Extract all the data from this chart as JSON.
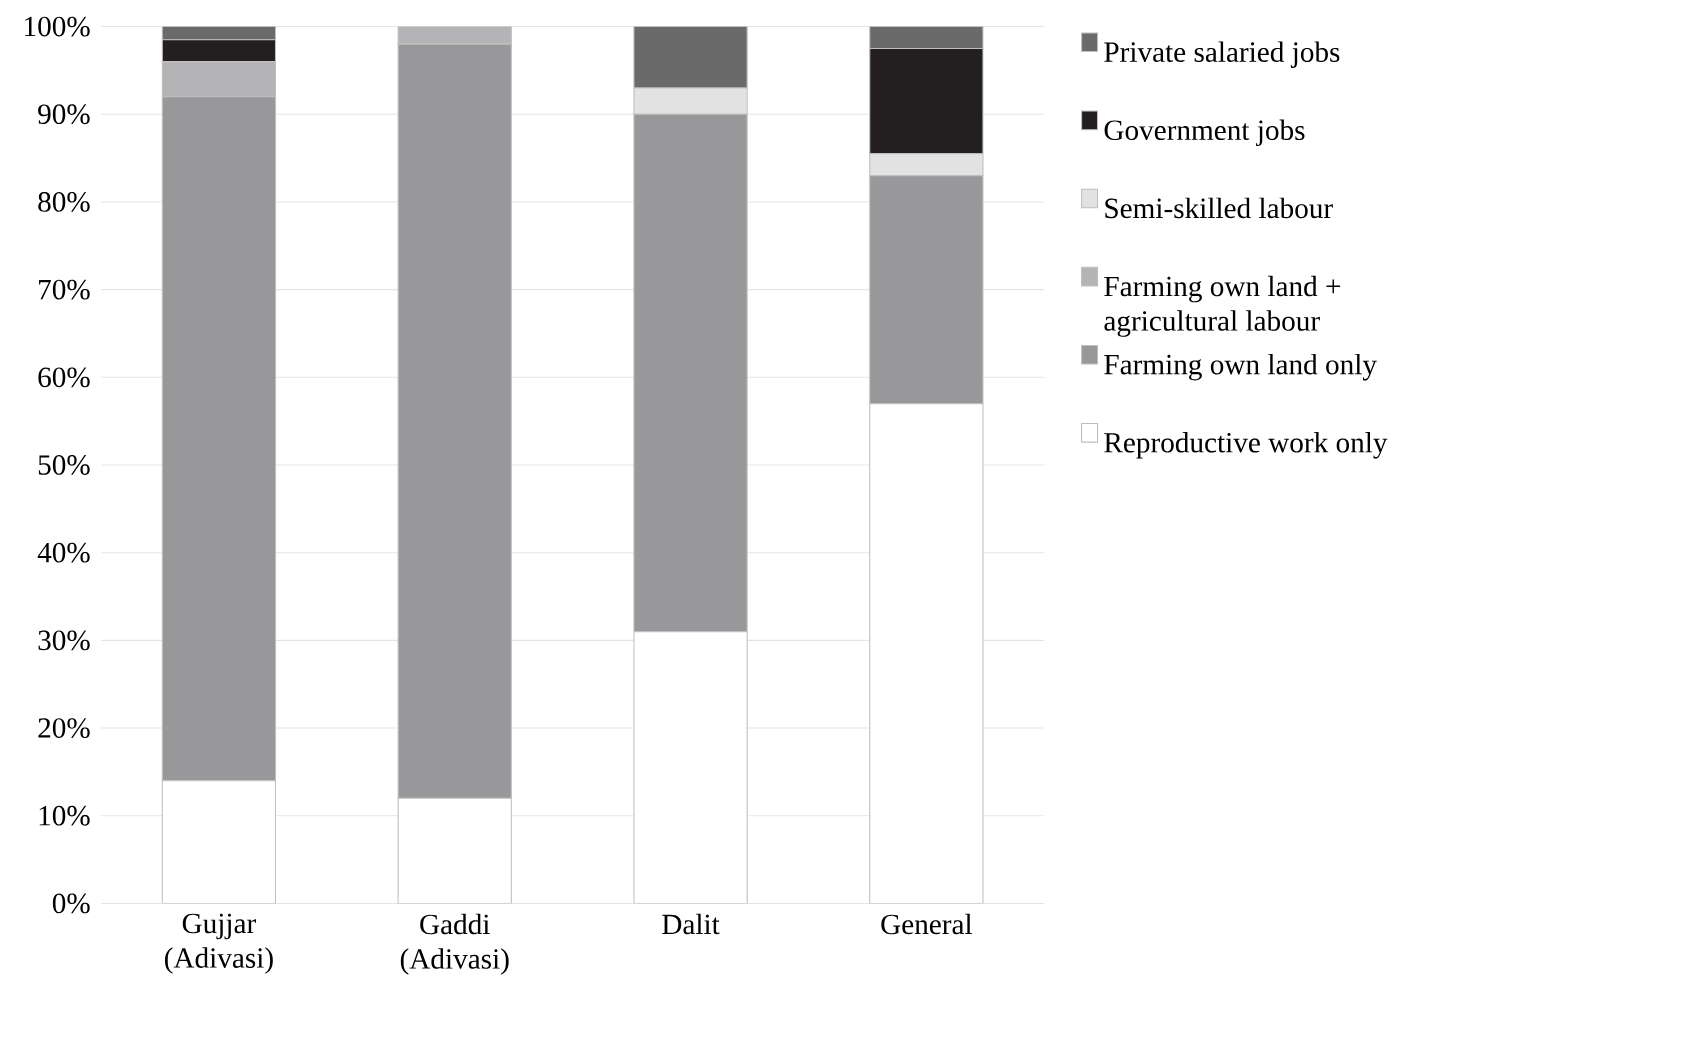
{
  "chart_data": {
    "type": "bar",
    "stacked": true,
    "categories": [
      "Gujjar (Adivasi)",
      "Gaddi (Adivasi)",
      "Dalit",
      "General"
    ],
    "series": [
      {
        "name": "Reproductive work only",
        "color": "#ffffff",
        "values": [
          14,
          12,
          31,
          57
        ]
      },
      {
        "name": "Farming own land only",
        "color": "#98989b",
        "values": [
          78,
          86,
          59,
          26
        ]
      },
      {
        "name": "Farming own land + agricultural labour",
        "color": "#b4b4b7",
        "values": [
          4,
          2,
          0,
          0
        ]
      },
      {
        "name": "Semi-skilled labour",
        "color": "#e2e2e2",
        "values": [
          0,
          0,
          3,
          2.5
        ]
      },
      {
        "name": "Government jobs",
        "color": "#231f20",
        "values": [
          2.5,
          0,
          0,
          12
        ]
      },
      {
        "name": "Private salaried jobs",
        "color": "#6a6a6a",
        "values": [
          1.5,
          0,
          7,
          2.5
        ]
      }
    ],
    "ylim": [
      0,
      100
    ],
    "yticks": [
      {
        "value": 0,
        "label": "0%"
      },
      {
        "value": 10,
        "label": "10%"
      },
      {
        "value": 20,
        "label": "20%"
      },
      {
        "value": 30,
        "label": "30%"
      },
      {
        "value": 40,
        "label": "40%"
      },
      {
        "value": 50,
        "label": "50%"
      },
      {
        "value": 60,
        "label": "60%"
      },
      {
        "value": 70,
        "label": "70%"
      },
      {
        "value": 80,
        "label": "80%"
      },
      {
        "value": 90,
        "label": "90%"
      },
      {
        "value": 100,
        "label": "100%"
      }
    ],
    "grid": "y",
    "legend": "right"
  }
}
